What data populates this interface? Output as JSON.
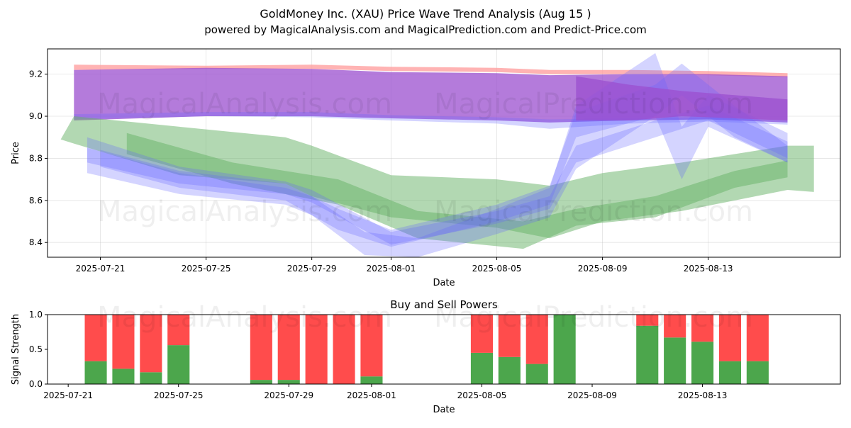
{
  "title_line1": "GoldMoney Inc. (XAU) Price Wave Trend Analysis (Aug 15 )",
  "title_line2": "powered by MagicalAnalysis.com and MagicalPrediction.com and Predict-Price.com",
  "watermarks": [
    "MagicalAnalysis.com",
    "MagicalPrediction.com"
  ],
  "chart_data": [
    {
      "type": "area",
      "title": "",
      "xlabel": "Date",
      "ylabel": "Price",
      "x_ticks": [
        "2025-07-21",
        "2025-07-25",
        "2025-07-29",
        "2025-08-01",
        "2025-08-05",
        "2025-08-09",
        "2025-08-13"
      ],
      "y_ticks": [
        "8.4",
        "8.6",
        "8.8",
        "9.0",
        "9.2"
      ],
      "xlim": [
        "2025-07-19",
        "2025-08-18"
      ],
      "ylim": [
        8.33,
        9.32
      ],
      "grid": true,
      "colors": {
        "red": "#ff9999",
        "green": "#66b266",
        "blue": "#6666ff",
        "purple": "#9b4fcf"
      },
      "bands": [
        {
          "color": "red",
          "x": [
            "2025-07-20",
            "2025-07-25",
            "2025-07-29",
            "2025-08-01",
            "2025-08-05",
            "2025-08-07",
            "2025-08-10",
            "2025-08-13",
            "2025-08-16"
          ],
          "upper": [
            9.245,
            9.24,
            9.245,
            9.235,
            9.23,
            9.22,
            9.22,
            9.215,
            9.205
          ],
          "lower": [
            9.22,
            9.225,
            9.225,
            9.215,
            9.21,
            9.2,
            9.2,
            9.195,
            9.185
          ]
        },
        {
          "color": "purple",
          "x": [
            "2025-07-20",
            "2025-07-25",
            "2025-07-29",
            "2025-08-01",
            "2025-08-05",
            "2025-08-07",
            "2025-08-10",
            "2025-08-13",
            "2025-08-16"
          ],
          "upper": [
            9.22,
            9.23,
            9.225,
            9.21,
            9.205,
            9.195,
            9.2,
            9.2,
            9.19
          ],
          "lower": [
            8.98,
            9.0,
            9.0,
            8.99,
            8.98,
            8.97,
            8.98,
            8.985,
            8.97
          ]
        },
        {
          "color": "blue",
          "x": [
            "2025-07-20",
            "2025-07-25",
            "2025-07-29",
            "2025-08-01",
            "2025-08-05",
            "2025-08-07",
            "2025-08-10",
            "2025-08-13",
            "2025-08-16"
          ],
          "upper": [
            9.01,
            9.02,
            9.02,
            9.005,
            8.995,
            8.985,
            8.99,
            8.995,
            8.98
          ],
          "lower": [
            8.985,
            9.0,
            8.995,
            8.98,
            8.965,
            8.94,
            8.965,
            8.975,
            8.96
          ]
        },
        {
          "color": "green",
          "x": [
            "2025-07-19.5",
            "2025-07-20",
            "2025-07-24",
            "2025-07-28",
            "2025-07-29",
            "2025-08-01",
            "2025-08-05",
            "2025-08-07",
            "2025-08-09",
            "2025-08-12",
            "2025-08-16",
            "2025-08-17"
          ],
          "upper": [
            8.89,
            9.0,
            8.95,
            8.9,
            8.86,
            8.72,
            8.7,
            8.67,
            8.73,
            8.78,
            8.86,
            8.86
          ],
          "lower": [
            8.89,
            8.87,
            8.72,
            8.68,
            8.62,
            8.52,
            8.47,
            8.42,
            8.5,
            8.55,
            8.65,
            8.64
          ]
        },
        {
          "color": "green",
          "x": [
            "2025-07-22",
            "2025-07-26",
            "2025-07-30",
            "2025-08-02",
            "2025-08-06",
            "2025-08-08",
            "2025-08-11",
            "2025-08-14",
            "2025-08-16"
          ],
          "upper": [
            8.92,
            8.78,
            8.7,
            8.55,
            8.5,
            8.56,
            8.62,
            8.74,
            8.79
          ],
          "lower": [
            8.82,
            8.68,
            8.58,
            8.42,
            8.37,
            8.48,
            8.52,
            8.66,
            8.71
          ]
        },
        {
          "color": "blue",
          "x": [
            "2025-07-20.5",
            "2025-07-24",
            "2025-07-28",
            "2025-07-29",
            "2025-08-01",
            "2025-08-05",
            "2025-08-07",
            "2025-08-08",
            "2025-08-11",
            "2025-08-13",
            "2025-08-16"
          ],
          "upper": [
            8.9,
            8.76,
            8.69,
            8.65,
            8.45,
            8.55,
            8.62,
            8.86,
            8.98,
            9.05,
            8.88
          ],
          "lower": [
            8.78,
            8.68,
            8.63,
            8.59,
            8.39,
            8.49,
            8.56,
            8.78,
            8.9,
            8.98,
            8.8
          ]
        },
        {
          "color": "blue",
          "x": [
            "2025-07-20.5",
            "2025-07-24",
            "2025-07-28",
            "2025-07-29",
            "2025-07-31",
            "2025-08-02",
            "2025-08-05",
            "2025-08-07",
            "2025-08-08",
            "2025-08-11",
            "2025-08-12",
            "2025-08-13",
            "2025-08-16"
          ],
          "upper": [
            8.85,
            8.73,
            8.66,
            8.62,
            8.45,
            8.42,
            8.56,
            8.66,
            9.05,
            9.3,
            8.95,
            9.1,
            8.92
          ],
          "lower": [
            8.73,
            8.63,
            8.58,
            8.53,
            8.34,
            8.33,
            8.44,
            8.52,
            8.75,
            9.0,
            8.7,
            8.95,
            8.78
          ]
        },
        {
          "color": "blue",
          "x": [
            "2025-07-21",
            "2025-07-24",
            "2025-07-28",
            "2025-07-30",
            "2025-08-01",
            "2025-08-05",
            "2025-08-07",
            "2025-08-08",
            "2025-08-11",
            "2025-08-12",
            "2025-08-14",
            "2025-08-16"
          ],
          "upper": [
            8.84,
            8.74,
            8.68,
            8.56,
            8.46,
            8.58,
            8.67,
            9.02,
            9.15,
            9.25,
            9.05,
            8.86
          ],
          "lower": [
            8.76,
            8.66,
            8.6,
            8.46,
            8.38,
            8.5,
            8.58,
            8.9,
            9.0,
            9.1,
            8.9,
            8.78
          ]
        },
        {
          "color": "purple",
          "x": [
            "2025-08-08",
            "2025-08-10",
            "2025-08-12",
            "2025-08-14",
            "2025-08-16"
          ],
          "upper": [
            9.19,
            9.15,
            9.12,
            9.1,
            9.08
          ],
          "lower": [
            8.98,
            8.98,
            9.0,
            8.99,
            8.98
          ]
        }
      ]
    },
    {
      "type": "bar",
      "title": "Buy and Sell Powers",
      "xlabel": "Date",
      "ylabel": "Signal Strength",
      "x_ticks": [
        "2025-07-21",
        "2025-07-25",
        "2025-07-29",
        "2025-08-01",
        "2025-08-05",
        "2025-08-09",
        "2025-08-13"
      ],
      "y_ticks": [
        "0.0",
        "0.5",
        "1.0"
      ],
      "xlim": [
        "2025-07-20.25",
        "2025-08-18"
      ],
      "ylim": [
        0,
        1
      ],
      "colors": {
        "buy": "#4ca64c",
        "sell": "#ff4c4c"
      },
      "categories": [
        "2025-07-22",
        "2025-07-23",
        "2025-07-24",
        "2025-07-25",
        "2025-07-28",
        "2025-07-29",
        "2025-07-30",
        "2025-07-31",
        "2025-08-01",
        "2025-08-05",
        "2025-08-06",
        "2025-08-07",
        "2025-08-08",
        "2025-08-11",
        "2025-08-12",
        "2025-08-13",
        "2025-08-14",
        "2025-08-15"
      ],
      "series": [
        {
          "name": "buy",
          "values": [
            0.33,
            0.22,
            0.17,
            0.56,
            0.06,
            0.06,
            0.0,
            0.0,
            0.11,
            0.45,
            0.39,
            0.29,
            1.0,
            0.84,
            0.67,
            0.61,
            0.33,
            0.33
          ]
        },
        {
          "name": "sell",
          "values": [
            0.67,
            0.78,
            0.83,
            0.44,
            0.94,
            0.94,
            1.0,
            1.0,
            0.89,
            0.55,
            0.61,
            0.71,
            0.0,
            0.16,
            0.33,
            0.39,
            0.67,
            0.67
          ]
        }
      ]
    }
  ]
}
